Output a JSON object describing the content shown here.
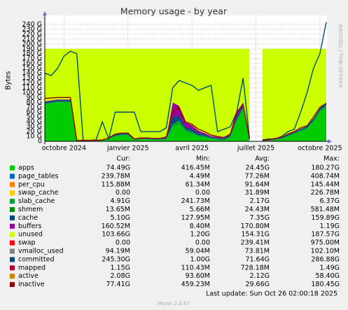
{
  "chart_data": {
    "type": "area",
    "title": "Memory usage - by year",
    "y_label": "Bytes",
    "side_text": "RRDTOOL / TOBI OETIKER",
    "categories": [
      null,
      null,
      null,
      "octobre 2024",
      null,
      null,
      null,
      null,
      null,
      null,
      null,
      null,
      null,
      "janvier 2025",
      null,
      null,
      null,
      null,
      null,
      null,
      null,
      null,
      null,
      "avril 2025",
      null,
      null,
      null,
      null,
      null,
      null,
      null,
      null,
      null,
      "juillet 2025",
      null,
      null,
      null,
      null,
      null,
      null,
      null,
      null,
      null,
      "octobre 2025",
      null
    ],
    "ylim": [
      0,
      250
    ],
    "yticks": [
      0,
      {
        "value": 10,
        "label": "10 G"
      },
      {
        "value": 20,
        "label": "20 G"
      },
      {
        "value": 30,
        "label": "30 G"
      },
      {
        "value": 40,
        "label": "40 G"
      },
      {
        "value": 50,
        "label": "50 G"
      },
      {
        "value": 60,
        "label": "60 G"
      },
      {
        "value": 70,
        "label": "70 G"
      },
      {
        "value": 80,
        "label": "80 G"
      },
      {
        "value": 90,
        "label": "90 G"
      },
      {
        "value": 100,
        "label": "100 G"
      },
      {
        "value": 110,
        "label": "110 G"
      },
      {
        "value": 120,
        "label": "120 G"
      },
      {
        "value": 130,
        "label": "130 G"
      },
      {
        "value": 140,
        "label": "140 G"
      },
      {
        "value": 150,
        "label": "150 G"
      },
      {
        "value": 160,
        "label": "160 G"
      },
      {
        "value": 170,
        "label": "170 G"
      },
      {
        "value": 180,
        "label": "180 G"
      },
      {
        "value": 190,
        "label": "190 G"
      },
      {
        "value": 200,
        "label": "200 G"
      },
      {
        "value": 210,
        "label": "210 G"
      },
      {
        "value": 220,
        "label": "220 G"
      },
      {
        "value": 230,
        "label": "230 G"
      },
      {
        "value": 240,
        "label": "240 G"
      }
    ],
    "grid": true,
    "series": [
      {
        "name": "apps",
        "color": "#00cc00",
        "style": "area",
        "values": [
          76,
          78,
          80,
          80,
          80,
          0.5,
          0.5,
          1,
          1,
          2,
          5,
          10,
          12,
          12,
          2,
          4,
          4,
          3,
          3,
          4,
          30,
          35,
          20,
          15,
          10,
          8,
          5,
          3,
          2,
          8,
          40,
          65,
          2,
          null,
          1,
          1,
          3,
          5,
          10,
          15,
          20,
          25,
          40,
          60,
          70
        ]
      },
      {
        "name": "page_tables",
        "color": "#0066b3"
      },
      {
        "name": "per_cpu",
        "color": "#ff8000"
      },
      {
        "name": "swap_cache",
        "color": "#ffcc00"
      },
      {
        "name": "slab_cache",
        "color": "#00a030",
        "style": "area",
        "values": [
          2,
          2,
          2,
          2,
          2,
          0.5,
          0.5,
          0.5,
          0.5,
          0.5,
          1,
          2,
          2,
          2,
          1,
          1,
          1,
          1,
          1,
          1,
          5,
          8,
          5,
          5,
          3,
          3,
          2,
          2,
          2,
          2,
          5,
          5,
          1,
          null,
          0.5,
          0.5,
          1,
          1,
          2,
          2,
          3,
          3,
          3,
          4,
          5
        ]
      },
      {
        "name": "shmem",
        "color": "#008f00"
      },
      {
        "name": "cache",
        "color": "#00487d",
        "style": "area",
        "values": [
          3,
          3,
          3,
          3,
          3,
          0.5,
          0.5,
          0.5,
          0.5,
          0.5,
          1,
          2,
          2,
          2,
          1,
          1,
          1,
          1,
          1,
          2,
          15,
          10,
          5,
          5,
          4,
          3,
          2,
          2,
          2,
          3,
          5,
          5,
          1,
          null,
          0.5,
          0.5,
          1,
          1,
          2,
          2,
          3,
          3,
          4,
          4,
          5
        ]
      },
      {
        "name": "buffers",
        "color": "#990099",
        "style": "area",
        "values": [
          1,
          1,
          1,
          1,
          1,
          0,
          0,
          0,
          0,
          0,
          0,
          0,
          0,
          0,
          0,
          0,
          0,
          0,
          0,
          1,
          30,
          20,
          10,
          8,
          5,
          3,
          2,
          2,
          1,
          2,
          10,
          5,
          0,
          null,
          0,
          0,
          0,
          0,
          0,
          0,
          0,
          0,
          0,
          0,
          0
        ]
      },
      {
        "name": "unused",
        "color": "#ccff00",
        "style": "area",
        "values": [
          108,
          106,
          104,
          104,
          104,
          188.5,
          188.5,
          188,
          188,
          187,
          183,
          176,
          174,
          174,
          186,
          184,
          184,
          185,
          185,
          182,
          110,
          117,
          150,
          157,
          168,
          173,
          179,
          181,
          183,
          175,
          130,
          110,
          186,
          null,
          188,
          188,
          185,
          183,
          176,
          171,
          164,
          159,
          143,
          122,
          110
        ]
      },
      {
        "name": "swap",
        "color": "#ff0000"
      },
      {
        "name": "vmalloc_used",
        "color": "#808080"
      },
      {
        "name": "committed",
        "color": "#004c73",
        "style": "line",
        "values": [
          140,
          135,
          150,
          175,
          185,
          180,
          2,
          2,
          3,
          40,
          5,
          60,
          60,
          60,
          60,
          20,
          20,
          20,
          20,
          28,
          110,
          125,
          120,
          115,
          105,
          110,
          115,
          20,
          25,
          30,
          60,
          130,
          5,
          null,
          3,
          5,
          5,
          10,
          20,
          25,
          60,
          100,
          150,
          180,
          245
        ]
      },
      {
        "name": "mapped",
        "color": "#b3002d"
      },
      {
        "name": "active",
        "color": "#cc8400"
      },
      {
        "name": "inactive",
        "color": "#8f0000",
        "style": "line",
        "values": [
          88,
          89,
          90,
          90,
          90,
          2,
          2,
          2,
          2,
          3,
          7,
          15,
          17,
          17,
          5,
          7,
          7,
          6,
          6,
          9,
          60,
          70,
          40,
          35,
          25,
          20,
          13,
          10,
          8,
          15,
          60,
          75,
          5,
          null,
          2,
          3,
          6,
          8,
          15,
          20,
          28,
          32,
          50,
          70,
          78
        ]
      }
    ]
  },
  "legend_stats": {
    "headers": [
      "Cur:",
      "Min:",
      "Avg:",
      "Max:"
    ],
    "rows": [
      [
        "74.49G",
        "416.45M",
        "24.45G",
        "180.27G"
      ],
      [
        "239.78M",
        "4.49M",
        "77.26M",
        "408.74M"
      ],
      [
        "115.88M",
        "61.34M",
        "91.64M",
        "145.44M"
      ],
      [
        "0.00",
        "0.00",
        "31.89M",
        "226.78M"
      ],
      [
        "4.91G",
        "241.73M",
        "2.17G",
        "6.37G"
      ],
      [
        "13.65M",
        "5.66M",
        "24.43M",
        "581.48M"
      ],
      [
        "5.10G",
        "127.95M",
        "7.35G",
        "159.89G"
      ],
      [
        "160.52M",
        "8.40M",
        "170.80M",
        "1.19G"
      ],
      [
        "103.66G",
        "1.20G",
        "154.31G",
        "187.57G"
      ],
      [
        "0.00",
        "0.00",
        "239.41M",
        "975.00M"
      ],
      [
        "94.19M",
        "59.04M",
        "73.81M",
        "102.10M"
      ],
      [
        "245.30G",
        "1.00G",
        "71.64G",
        "286.88G"
      ],
      [
        "1.15G",
        "110.43M",
        "728.18M",
        "1.49G"
      ],
      [
        "2.08G",
        "93.60M",
        "2.12G",
        "58.40G"
      ],
      [
        "77.41G",
        "459.23M",
        "29.66G",
        "180.45G"
      ]
    ]
  },
  "footer": {
    "last_update": "Last update: Sun Oct 26 02:00:18 2025",
    "version": "Munin 2.0.67"
  }
}
